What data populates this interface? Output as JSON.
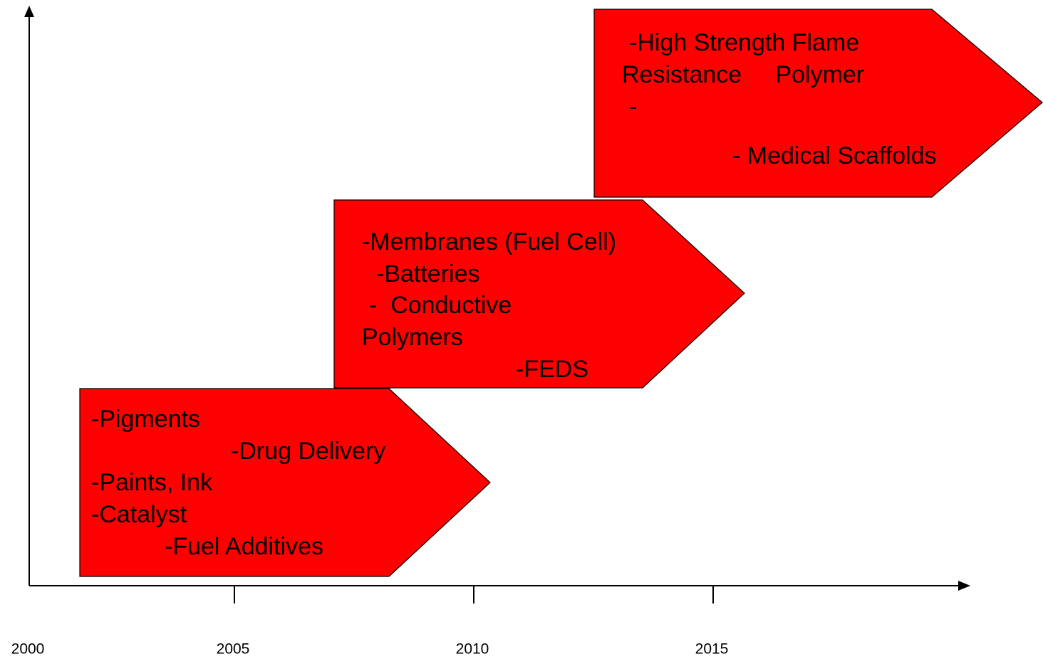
{
  "axis": {
    "tick_labels": [
      "2000",
      "2005",
      "2010",
      "2015"
    ]
  },
  "arrows": [
    {
      "lines": [
        "-Pigments",
        "-Drug Delivery",
        "-Paints, Ink",
        "-Catalyst",
        "-Fuel Additives"
      ]
    },
    {
      "lines": [
        "-Membranes (Fuel Cell)",
        "-Batteries",
        "-  Conductive",
        "Polymers",
        "-FEDS"
      ]
    },
    {
      "lines": [
        "-High Strength Flame",
        "Resistance     Polymer",
        "-",
        "- Medical Scaffolds"
      ]
    }
  ]
}
